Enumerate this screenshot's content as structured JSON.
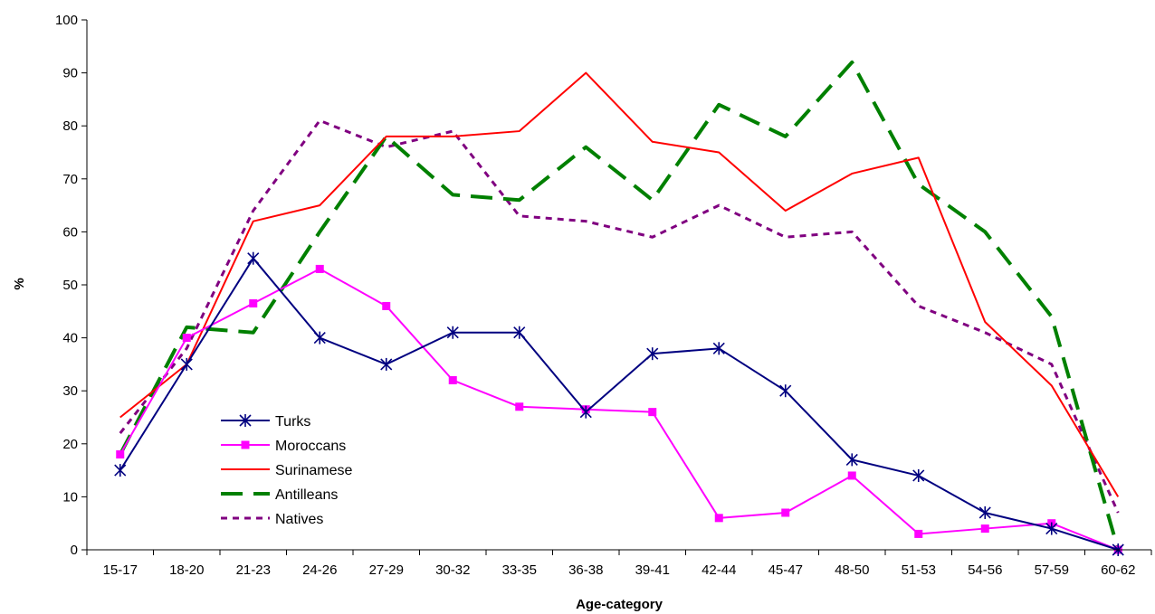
{
  "chart_data": {
    "type": "line",
    "title": "",
    "xlabel": "Age-category",
    "ylabel": "%",
    "ylim": [
      0,
      100
    ],
    "yticks": [
      "0",
      "10",
      "20",
      "30",
      "40",
      "50",
      "60",
      "70",
      "80",
      "90",
      "100"
    ],
    "categories": [
      "15-17",
      "18-20",
      "21-23",
      "24-26",
      "27-29",
      "30-32",
      "33-35",
      "36-38",
      "39-41",
      "42-44",
      "45-47",
      "48-50",
      "51-53",
      "54-56",
      "57-59",
      "60-62"
    ],
    "grid": false,
    "legend_position": "inside-bottom-left",
    "series": [
      {
        "name": "Turks",
        "color": "#000080",
        "line_style": "solid",
        "marker": "star",
        "values": [
          15,
          35,
          55,
          40,
          35,
          41,
          41,
          26,
          37,
          38,
          30,
          17,
          14,
          7,
          4,
          0
        ]
      },
      {
        "name": "Moroccans",
        "color": "#ff00ff",
        "line_style": "solid",
        "marker": "square",
        "values": [
          18,
          40,
          46.5,
          53,
          46,
          32,
          27,
          26.5,
          26,
          6,
          7,
          14,
          3,
          4,
          5,
          0
        ]
      },
      {
        "name": "Surinamese",
        "color": "#ff0000",
        "line_style": "solid",
        "marker": "none",
        "values": [
          25,
          35,
          62,
          65,
          78,
          78,
          79,
          90,
          77,
          75,
          64,
          71,
          74,
          43,
          31,
          10
        ]
      },
      {
        "name": "Antilleans",
        "color": "#008000",
        "line_style": "long-dash",
        "marker": "none",
        "values": [
          18,
          42,
          41,
          60,
          78,
          67,
          66,
          76,
          66,
          84,
          78,
          92,
          69,
          60,
          44,
          0
        ]
      },
      {
        "name": "Natives",
        "color": "#800080",
        "line_style": "short-dash",
        "marker": "none",
        "values": [
          22,
          38,
          64,
          81,
          76,
          79,
          63,
          62,
          59,
          65,
          59,
          60,
          46,
          41,
          35,
          7
        ]
      }
    ]
  }
}
